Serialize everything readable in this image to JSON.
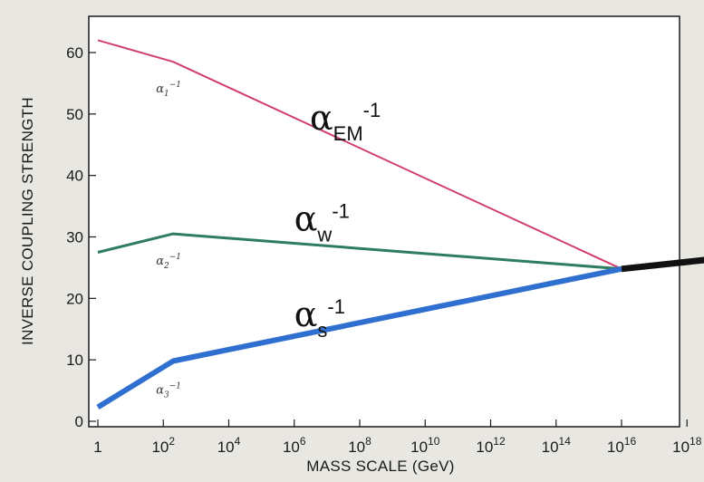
{
  "chart_data": {
    "type": "line",
    "title": "",
    "xlabel": "MASS SCALE (GeV)",
    "ylabel": "INVERSE COUPLING STRENGTH",
    "x_scale": "log",
    "xlim": [
      1,
      1e+19
    ],
    "ylim": [
      0,
      64
    ],
    "x_ticks": [
      {
        "value": 1,
        "base": "1",
        "exp": ""
      },
      {
        "value": 100.0,
        "base": "10",
        "exp": "2"
      },
      {
        "value": 10000.0,
        "base": "10",
        "exp": "4"
      },
      {
        "value": 1000000.0,
        "base": "10",
        "exp": "6"
      },
      {
        "value": 100000000.0,
        "base": "10",
        "exp": "8"
      },
      {
        "value": 10000000000.0,
        "base": "10",
        "exp": "10"
      },
      {
        "value": 1000000000000.0,
        "base": "10",
        "exp": "12"
      },
      {
        "value": 100000000000000.0,
        "base": "10",
        "exp": "14"
      },
      {
        "value": 1e+16,
        "base": "10",
        "exp": "16"
      },
      {
        "value": 1e+18,
        "base": "10",
        "exp": "18"
      }
    ],
    "y_ticks": [
      0,
      10,
      20,
      30,
      40,
      50,
      60
    ],
    "grid": false,
    "series": [
      {
        "key": "alpha1",
        "color": "#d0406a",
        "width": 2,
        "points": [
          [
            1,
            62.0
          ],
          [
            200,
            58.5
          ],
          [
            1e+16,
            24.8
          ]
        ]
      },
      {
        "key": "alpha2",
        "color": "#2e7d5e",
        "width": 3,
        "points": [
          [
            1,
            27.5
          ],
          [
            200,
            30.5
          ],
          [
            1e+16,
            24.8
          ]
        ]
      },
      {
        "key": "alpha3",
        "color": "#2f6fd0",
        "width": 6,
        "points": [
          [
            1,
            2.3
          ],
          [
            200,
            9.8
          ],
          [
            1e+16,
            24.8
          ]
        ]
      },
      {
        "key": "unified",
        "color": "#111111",
        "width": 7,
        "points": [
          [
            1e+16,
            24.8
          ],
          [
            1e+19,
            26.5
          ]
        ]
      }
    ],
    "annotations": {
      "small": [
        {
          "key": "a1",
          "greek": "α",
          "sub": "1",
          "sup": "−1",
          "at": [
            60,
            53.5
          ]
        },
        {
          "key": "a2",
          "greek": "α",
          "sub": "2",
          "sup": "−1",
          "at": [
            60,
            25.5
          ]
        },
        {
          "key": "a3",
          "greek": "α",
          "sub": "3",
          "sup": "−1",
          "at": [
            60,
            4.5
          ]
        }
      ],
      "big": [
        {
          "key": "em",
          "greek": "α",
          "sub": "EM",
          "sup": "-1",
          "at": [
            3000000.0,
            47.5
          ]
        },
        {
          "key": "w",
          "greek": "α",
          "sub": "w",
          "sup": "-1",
          "at": [
            1000000.0,
            31.0
          ]
        },
        {
          "key": "s",
          "greek": "α",
          "sub": "s",
          "sup": "-1",
          "at": [
            1000000.0,
            15.5
          ]
        }
      ]
    }
  }
}
